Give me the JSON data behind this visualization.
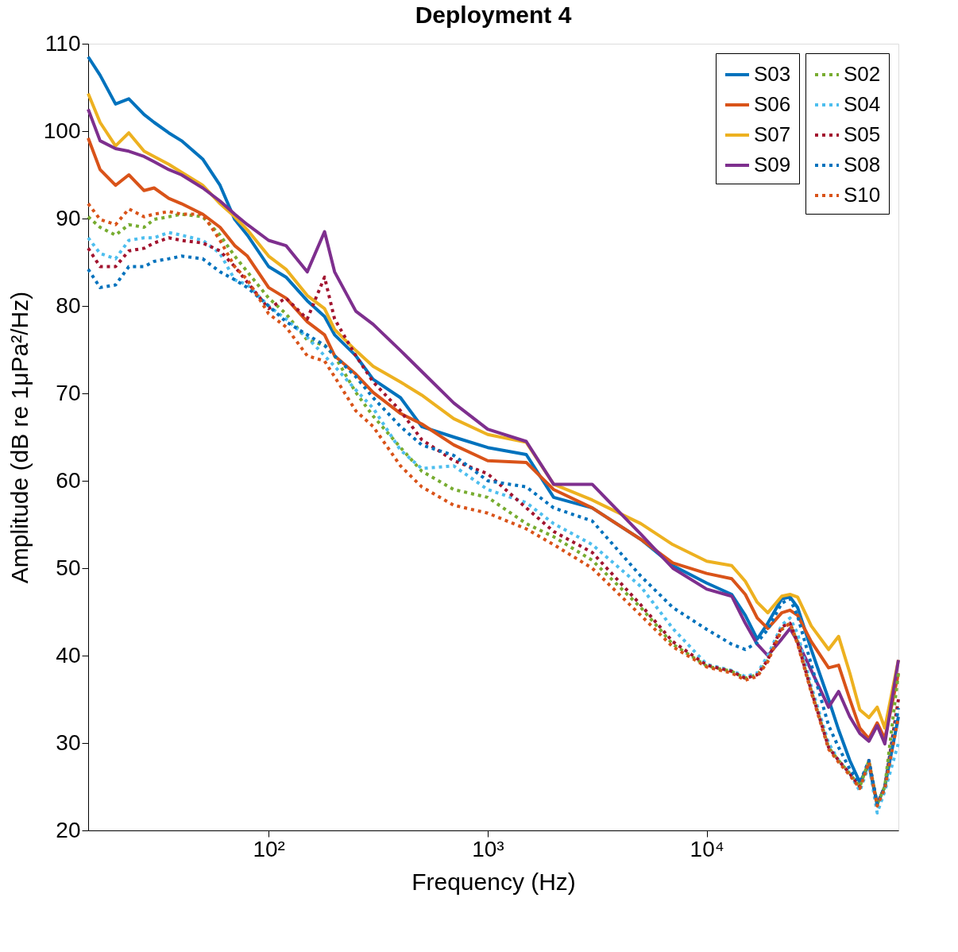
{
  "chart_data": {
    "type": "line",
    "title": "Deployment 4",
    "xlabel": "Frequency (Hz)",
    "ylabel": "Amplitude (dB re 1μPa²/Hz)",
    "log": "x",
    "grid": false,
    "legend": "top right",
    "xlim": [
      15,
      75000
    ],
    "ylim": [
      20,
      110
    ],
    "xticks": [
      {
        "value": 100,
        "label": "10²"
      },
      {
        "value": 1000,
        "label": "10³"
      },
      {
        "value": 10000,
        "label": "10⁴"
      }
    ],
    "yticks": [
      20,
      30,
      40,
      50,
      60,
      70,
      80,
      90,
      100,
      110
    ],
    "x": [
      15,
      17,
      20,
      23,
      27,
      30,
      35,
      40,
      50,
      60,
      70,
      80,
      100,
      120,
      150,
      180,
      200,
      250,
      300,
      400,
      500,
      700,
      1000,
      1500,
      2000,
      3000,
      5000,
      7000,
      10000,
      13000,
      15000,
      17000,
      19000,
      22000,
      24000,
      26000,
      30000,
      36000,
      40000,
      45000,
      50000,
      55000,
      60000,
      65000,
      75000
    ],
    "series": [
      {
        "name": "S03",
        "color": "#0072bd",
        "line_style": "solid",
        "values": [
          108.5,
          106.4,
          103.1,
          103.7,
          101.9,
          101,
          99.8,
          98.9,
          96.8,
          93.8,
          89.9,
          88.1,
          84.5,
          83.3,
          80.6,
          78.8,
          76.7,
          74.3,
          71.6,
          69.5,
          66.2,
          65,
          63.8,
          63,
          58.1,
          56.9,
          53.3,
          50.3,
          48.3,
          47,
          44.6,
          41.9,
          43.7,
          46.5,
          46.7,
          45.5,
          40.7,
          35,
          31.5,
          28,
          25.5,
          27.5,
          23,
          25,
          33
        ]
      },
      {
        "name": "S06",
        "color": "#d95319",
        "line_style": "solid",
        "values": [
          99.2,
          95.6,
          93.8,
          95,
          93.2,
          93.5,
          92.3,
          91.7,
          90.5,
          89,
          86.9,
          85.7,
          82.1,
          80.9,
          78.2,
          76.7,
          74.3,
          72.2,
          70.1,
          67.7,
          66.5,
          64.1,
          62.3,
          62.1,
          59,
          56.9,
          53.3,
          50.6,
          49.4,
          48.8,
          47,
          44.3,
          43.1,
          44.9,
          45.2,
          44.6,
          41.6,
          38.6,
          38.9,
          35,
          31.7,
          30.5,
          32.3,
          30.5,
          38
        ]
      },
      {
        "name": "S07",
        "color": "#edb120",
        "line_style": "solid",
        "values": [
          104.3,
          101,
          98.3,
          99.8,
          97.7,
          97.1,
          96.2,
          95.3,
          93.8,
          91.7,
          90.2,
          88.7,
          85.7,
          84.2,
          81.2,
          79.7,
          77.3,
          74.9,
          73.1,
          71.3,
          69.8,
          67.1,
          65.3,
          64.4,
          59.6,
          57.8,
          55.1,
          52.7,
          50.8,
          50.3,
          48.5,
          46.1,
          44.9,
          46.8,
          47,
          46.7,
          43.4,
          40.7,
          42.2,
          38,
          33.8,
          32.9,
          34.1,
          31.7,
          39.5
        ]
      },
      {
        "name": "S09",
        "color": "#7e2f8e",
        "line_style": "solid",
        "values": [
          102.5,
          98.9,
          98,
          97.7,
          97.1,
          96.5,
          95.6,
          95,
          93.5,
          92,
          90.5,
          89.3,
          87.5,
          86.9,
          83.9,
          88.5,
          83.9,
          79.4,
          77.9,
          74.9,
          72.5,
          68.9,
          65.9,
          64.5,
          59.6,
          59.6,
          53.9,
          50,
          47.6,
          46.8,
          43.7,
          41.3,
          40,
          41.9,
          43.1,
          41.6,
          38.3,
          34.1,
          35.9,
          33,
          31.1,
          30.2,
          32,
          29.9,
          39.5
        ]
      },
      {
        "name": "S02",
        "color": "#77ac30",
        "line_style": "dotted",
        "values": [
          90.2,
          89,
          88.1,
          89.3,
          89,
          89.9,
          90.2,
          90.5,
          90.2,
          88.1,
          85.7,
          83.9,
          80.9,
          79.1,
          76.1,
          75.5,
          74.3,
          70.1,
          67.4,
          63.8,
          61.1,
          59,
          58.1,
          55.1,
          53.6,
          50.9,
          45.5,
          41.3,
          38.8,
          38.2,
          37.4,
          37.8,
          39.5,
          43,
          43.7,
          41.5,
          36,
          29.5,
          28,
          26.5,
          25,
          28,
          23,
          25,
          38
        ]
      },
      {
        "name": "S04",
        "color": "#4dbeee",
        "line_style": "dotted",
        "values": [
          87.8,
          86,
          85.4,
          87.5,
          87.8,
          87.8,
          88.4,
          88.1,
          87.5,
          86,
          83,
          82.4,
          80,
          78.5,
          76.4,
          74.3,
          73.1,
          70.4,
          68.3,
          63.5,
          61.4,
          61.7,
          59,
          57.5,
          55.1,
          52.7,
          47.9,
          43.1,
          39,
          38.3,
          37.6,
          38,
          40,
          43.5,
          44.3,
          42.5,
          36.5,
          30,
          28,
          26.5,
          24.5,
          27.5,
          22,
          24.5,
          30
        ]
      },
      {
        "name": "S05",
        "color": "#a2142f",
        "line_style": "dotted",
        "values": [
          86.6,
          84.5,
          84.5,
          86.3,
          86.6,
          87.2,
          87.8,
          87.5,
          87.2,
          86.3,
          84.5,
          82.7,
          79.7,
          80.9,
          78.5,
          83.3,
          78.5,
          74.3,
          71.3,
          68,
          64.7,
          62.3,
          60.8,
          56.9,
          54.2,
          51.8,
          45.8,
          41.6,
          38.9,
          38.2,
          37.4,
          37.8,
          39.5,
          43.3,
          43.7,
          41.5,
          36,
          29.5,
          28,
          26.5,
          25,
          28,
          23,
          25,
          35
        ]
      },
      {
        "name": "S08",
        "color": "#0072bd",
        "line_style": "dotted",
        "values": [
          84.2,
          82.1,
          82.4,
          84.5,
          84.5,
          85.1,
          85.4,
          85.7,
          85.4,
          83.9,
          83,
          82.1,
          80,
          78.2,
          76.7,
          75.5,
          74.3,
          71.9,
          69.5,
          66.2,
          64.1,
          62.9,
          60,
          59.3,
          56.9,
          55.4,
          49.1,
          45.5,
          43,
          41.3,
          40.7,
          41.5,
          43,
          46,
          46.5,
          44.5,
          39,
          32,
          29.5,
          27,
          25.5,
          28,
          23,
          25,
          34
        ]
      },
      {
        "name": "S10",
        "color": "#d95319",
        "line_style": "dotted",
        "values": [
          91.7,
          89.9,
          89.3,
          91.1,
          90.2,
          90.5,
          90.8,
          90.5,
          90.5,
          87.5,
          84.5,
          83,
          79.1,
          77.6,
          74.3,
          73.7,
          71.9,
          68,
          66.2,
          61.7,
          59.3,
          57.2,
          56.3,
          54.5,
          52.7,
          50,
          44.6,
          41,
          38.7,
          38,
          37.2,
          37.6,
          39.3,
          43,
          43.7,
          41.3,
          35.8,
          29.3,
          27.8,
          26.3,
          24.8,
          27.8,
          22.8,
          24.8,
          33
        ]
      }
    ]
  }
}
